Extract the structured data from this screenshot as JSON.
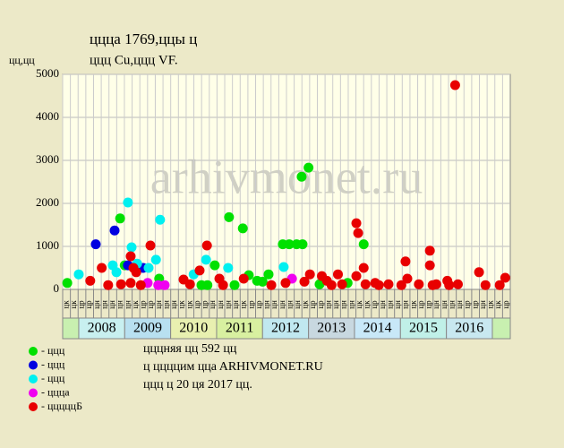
{
  "chart_data": {
    "type": "scatter",
    "title": "ццца 1769,ццы ц",
    "subtitle": "ццц Cu,ццц VF.",
    "y_label": "цц,цц",
    "watermark": "arhivmonet.ru",
    "xlim": [
      2007.65,
      2017.39
    ],
    "ylim": [
      0,
      5000
    ],
    "yticks": [
      0,
      1000,
      2000,
      3000,
      4000,
      5000
    ],
    "grid": true,
    "years": [
      null,
      "2008",
      "2009",
      "2010",
      "2011",
      "2012",
      "2013",
      "2014",
      "2015",
      "2016",
      null
    ],
    "year_starts": [
      2007.65,
      2008,
      2009,
      2010,
      2011,
      2012,
      2013,
      2014,
      2015,
      2016,
      2017
    ],
    "year_colors": [
      "#c8f0b0",
      "#c8f0f0",
      "#b8e0f0",
      "#e8f0b0",
      "#d8f0a0",
      "#c0e8f0",
      "#c8d8e0",
      "#c8e8f8",
      "#c0f0e8",
      "#c8e8f0",
      "#c8f0b0"
    ],
    "period_labels": [
      "цк",
      "цк",
      "цр",
      "цр",
      "цн",
      "цн",
      "цн",
      "цн",
      "цн",
      "цк",
      "цр",
      "цр",
      "цн",
      "цн",
      "цн",
      "цк",
      "цк",
      "цр",
      "цр",
      "цн",
      "цн",
      "цн",
      "цн",
      "цк",
      "цр",
      "цр",
      "цн",
      "цн",
      "цн",
      "цн",
      "цн",
      "цк",
      "цр",
      "цр",
      "цн",
      "цн",
      "цн",
      "цн",
      "цк",
      "цк",
      "цр",
      "цн",
      "цн",
      "цн",
      "цн",
      "цк",
      "цр",
      "цр",
      "цн",
      "цн",
      "цн",
      "цн",
      "цр",
      "цр",
      "цн",
      "цк",
      "цк",
      "цр"
    ],
    "series": [
      {
        "name": "- ццц",
        "color": "#00e000",
        "x": [
          2007.75,
          2008.9,
          2009.0,
          2009.75,
          2010.67,
          2010.8,
          2010.96,
          2011.27,
          2011.39,
          2011.57,
          2011.7,
          2011.88,
          2012.0,
          2012.13,
          2012.44,
          2012.58,
          2012.74,
          2012.87,
          2012.85,
          2013.0,
          2013.24,
          2013.85,
          2014.2
        ],
        "values": [
          150,
          1650,
          560,
          250,
          100,
          100,
          560,
          1680,
          100,
          1420,
          330,
          200,
          180,
          350,
          1050,
          1050,
          1050,
          1050,
          2620,
          2830,
          120,
          150,
          1050
        ]
      },
      {
        "name": "- ццц",
        "color": "#0000e0",
        "x": [
          2008.37,
          2008.78,
          2009.07,
          2009.4
        ],
        "values": [
          1050,
          1370,
          560,
          500
        ]
      },
      {
        "name": "- ццц",
        "color": "#00f0f0",
        "x": [
          2008.0,
          2008.74,
          2008.82,
          2009.07,
          2009.15,
          2009.27,
          2009.52,
          2009.68,
          2009.77,
          2010.5,
          2010.77,
          2011.25,
          2012.46
        ],
        "values": [
          350,
          560,
          400,
          2020,
          980,
          600,
          500,
          690,
          1620,
          350,
          690,
          500,
          520
        ]
      },
      {
        "name": "- ццца",
        "color": "#f000f0",
        "x": [
          2009.5,
          2009.73,
          2009.87,
          2012.64
        ],
        "values": [
          150,
          100,
          100,
          250
        ]
      },
      {
        "name": "- цццццБ",
        "color": "#e80000",
        "x": [
          2008.25,
          2008.5,
          2008.64,
          2008.92,
          2009.13,
          2009.19,
          2009.25,
          2009.13,
          2009.56,
          2009.35,
          2010.28,
          2010.42,
          2010.63,
          2010.79,
          2011.06,
          2011.14,
          2011.59,
          2012.19,
          2012.5,
          2012.91,
          2013.03,
          2013.29,
          2013.4,
          2013.5,
          2013.64,
          2013.73,
          2014.04,
          2014.08,
          2014.2,
          2014.04,
          2014.24,
          2014.45,
          2014.53,
          2014.74,
          2015.02,
          2015.11,
          2015.15,
          2015.4,
          2015.64,
          2015.64,
          2015.7,
          2015.78,
          2016.02,
          2016.06,
          2016.19,
          2016.25,
          2016.71,
          2016.85,
          2017.16,
          2017.28
        ],
        "values": [
          200,
          500,
          100,
          120,
          770,
          500,
          400,
          150,
          1020,
          100,
          230,
          120,
          440,
          1020,
          250,
          100,
          250,
          100,
          150,
          180,
          350,
          310,
          200,
          100,
          350,
          120,
          1540,
          1310,
          500,
          310,
          120,
          150,
          100,
          120,
          100,
          650,
          250,
          120,
          900,
          560,
          100,
          120,
          200,
          100,
          4750,
          120,
          400,
          100,
          100,
          270
        ]
      }
    ],
    "notes": [
      "цццняя цц 592 цц",
      "ц ццццим ццa ARHIVMONET.RU",
      "ццц ц 20 ця 2017 цц."
    ]
  }
}
